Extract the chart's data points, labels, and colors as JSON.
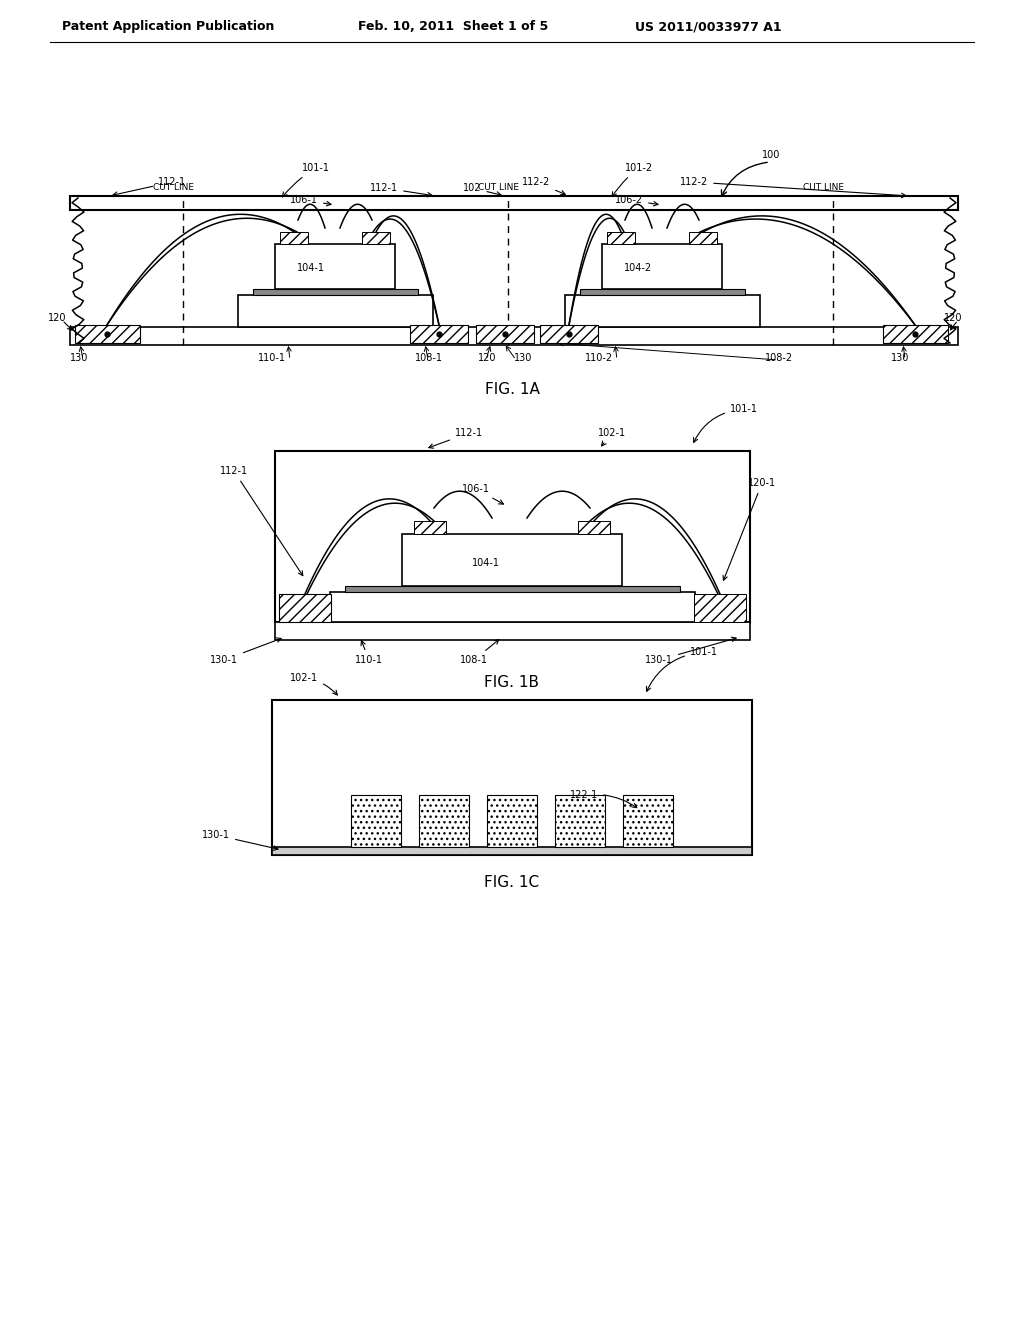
{
  "bg_color": "#ffffff",
  "header_left": "Patent Application Publication",
  "header_mid": "Feb. 10, 2011  Sheet 1 of 5",
  "header_right": "US 2011/0033977 A1",
  "fig1a_label": "FIG. 1A",
  "fig1b_label": "FIG. 1B",
  "fig1c_label": "FIG. 1C",
  "dark_fill": "#888888",
  "hatch_fill": "white",
  "line_lw": 1.2
}
